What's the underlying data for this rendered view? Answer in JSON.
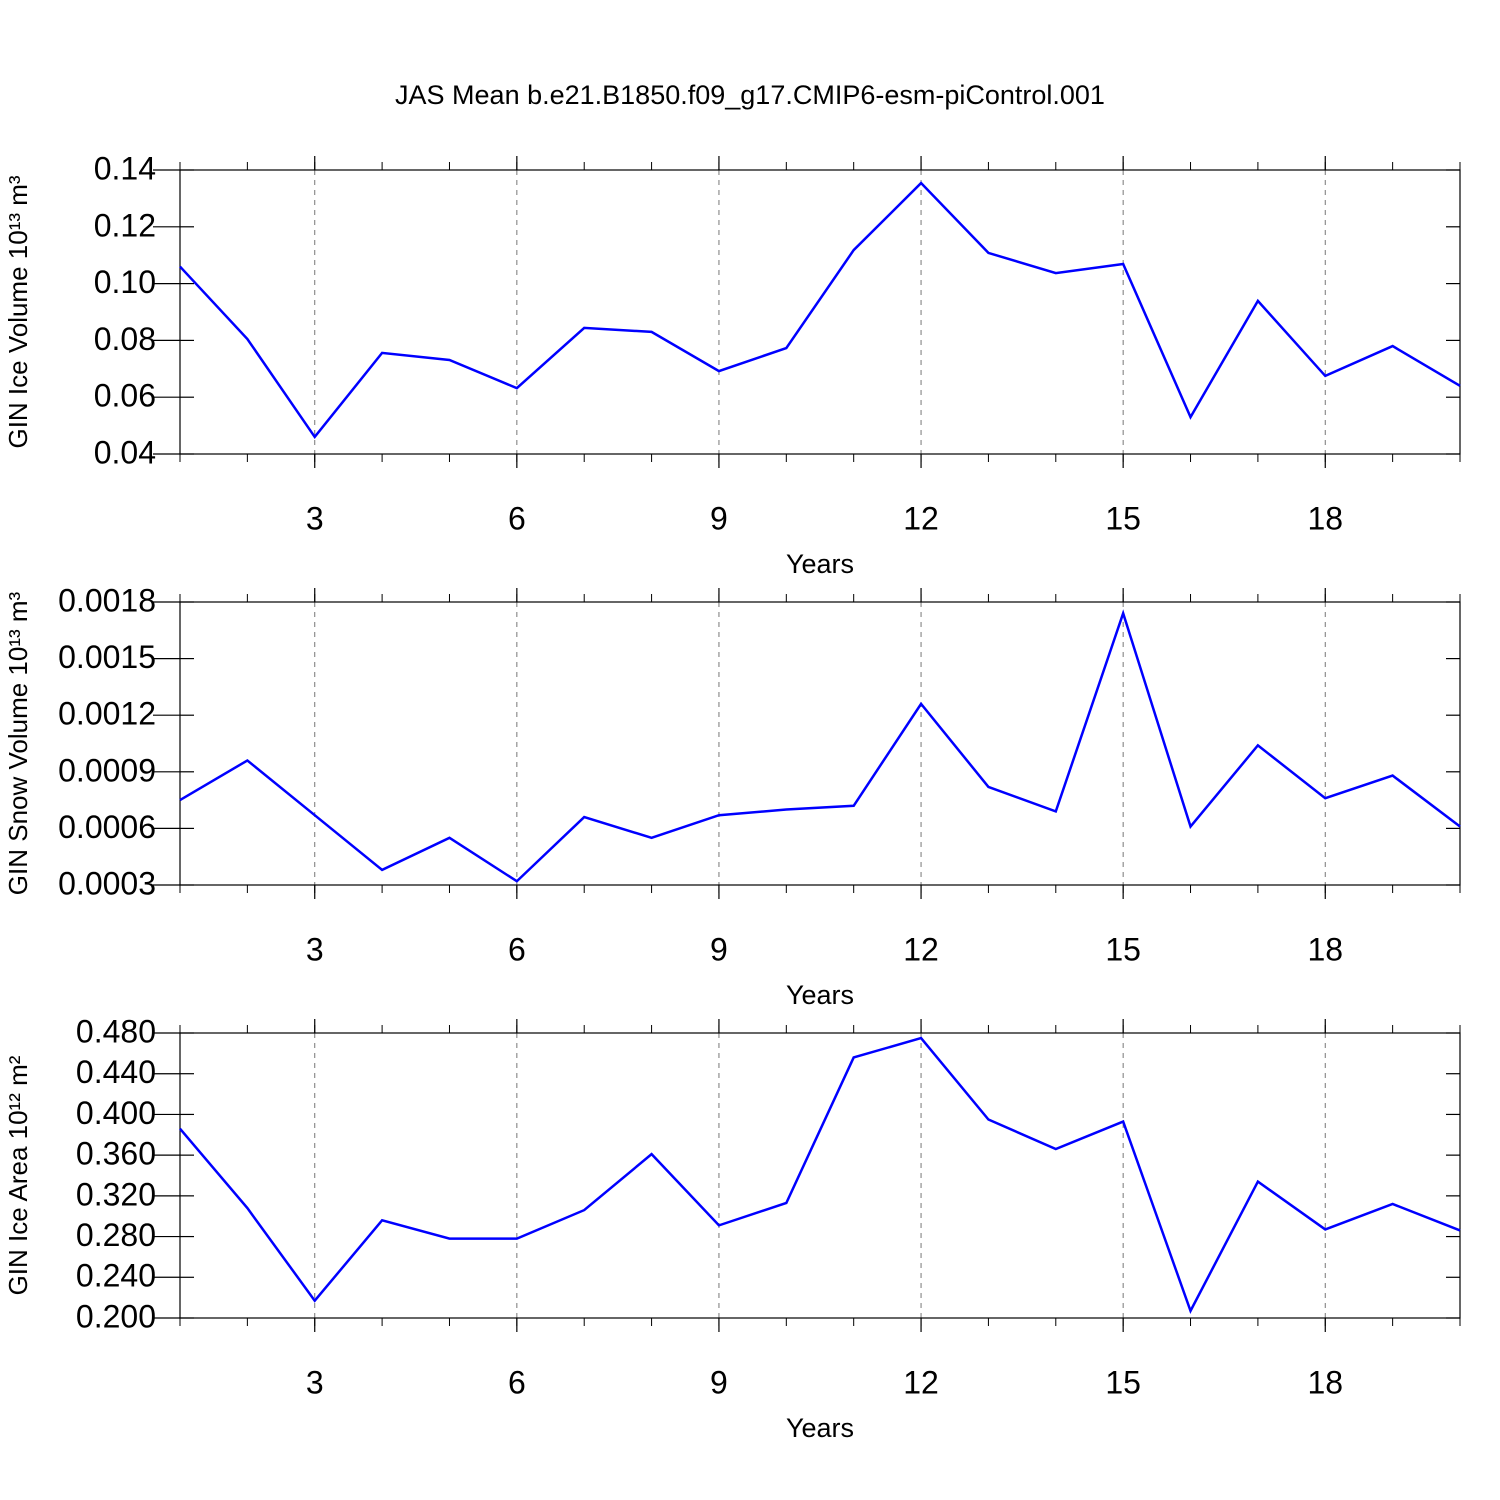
{
  "chart_data": [
    {
      "type": "line",
      "title": "JAS Mean b.e21.B1850.f09_g17.CMIP6-esm-piControl.001",
      "xlabel": "Years",
      "ylabel": "GIN Ice Volume 10¹³ m³",
      "x": [
        1,
        2,
        3,
        4,
        5,
        6,
        7,
        8,
        9,
        10,
        11,
        12,
        13,
        14,
        15,
        16,
        17,
        18,
        19,
        20
      ],
      "series": [
        {
          "color": "#0000ff",
          "values": [
            0.106,
            0.0805,
            0.046,
            0.0756,
            0.0731,
            0.0632,
            0.0844,
            0.083,
            0.0692,
            0.0773,
            0.1118,
            0.1354,
            0.1108,
            0.1037,
            0.1069,
            0.053,
            0.0939,
            0.0675,
            0.078,
            0.064
          ]
        }
      ],
      "xlim": [
        1,
        20
      ],
      "xticks": [
        3,
        6,
        9,
        12,
        15,
        18
      ],
      "ylim": [
        0.04,
        0.14
      ],
      "yticks": [
        0.04,
        0.06,
        0.08,
        {
          "value": 0.1,
          "label": "0.10"
        },
        0.12,
        0.14
      ],
      "grid": true
    },
    {
      "type": "line",
      "xlabel": "Years",
      "ylabel": "GIN Snow Volume 10¹³ m³",
      "x": [
        1,
        2,
        3,
        4,
        5,
        6,
        7,
        8,
        9,
        10,
        11,
        12,
        13,
        14,
        15,
        16,
        17,
        18,
        19,
        20
      ],
      "series": [
        {
          "color": "#0000ff",
          "values": [
            0.00075,
            0.00096,
            0.00067,
            0.00038,
            0.00055,
            0.00032,
            0.00066,
            0.00055,
            0.00067,
            0.0007,
            0.00072,
            0.00126,
            0.00082,
            0.00069,
            0.00174,
            0.00061,
            0.00104,
            0.00076,
            0.00088,
            0.00061
          ]
        }
      ],
      "xlim": [
        1,
        20
      ],
      "xticks": [
        3,
        6,
        9,
        12,
        15,
        18
      ],
      "ylim": [
        0.0003,
        0.0018
      ],
      "yticks": [
        0.0003,
        0.0006,
        0.0009,
        0.0012,
        0.0015,
        0.0018
      ],
      "grid": true
    },
    {
      "type": "line",
      "xlabel": "Years",
      "ylabel": "GIN Ice Area 10¹² m²",
      "x": [
        1,
        2,
        3,
        4,
        5,
        6,
        7,
        8,
        9,
        10,
        11,
        12,
        13,
        14,
        15,
        16,
        17,
        18,
        19,
        20
      ],
      "series": [
        {
          "color": "#0000ff",
          "values": [
            0.386,
            0.308,
            0.217,
            0.296,
            0.278,
            0.278,
            0.306,
            0.361,
            0.291,
            0.313,
            0.456,
            0.475,
            0.395,
            0.366,
            0.393,
            0.207,
            0.334,
            0.287,
            0.312,
            0.286
          ]
        }
      ],
      "xlim": [
        1,
        20
      ],
      "xticks": [
        3,
        6,
        9,
        12,
        15,
        18
      ],
      "ylim": [
        0.2,
        0.48
      ],
      "yticks": [
        {
          "value": 0.2,
          "label": "0.200"
        },
        {
          "value": 0.24,
          "label": "0.240"
        },
        {
          "value": 0.28,
          "label": "0.280"
        },
        {
          "value": 0.32,
          "label": "0.320"
        },
        {
          "value": 0.36,
          "label": "0.360"
        },
        {
          "value": 0.4,
          "label": "0.400"
        },
        {
          "value": 0.44,
          "label": "0.440"
        },
        {
          "value": 0.48,
          "label": "0.480"
        }
      ],
      "grid": true
    }
  ]
}
